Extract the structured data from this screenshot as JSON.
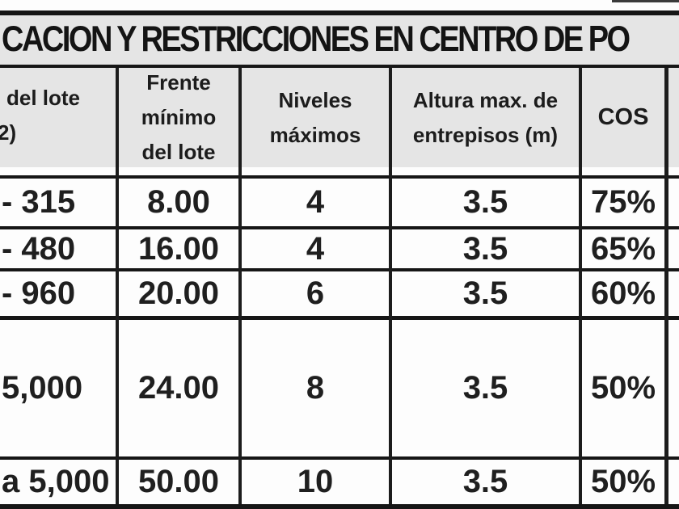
{
  "title": "CACION Y RESTRICCIONES EN CENTRO DE PO",
  "table": {
    "header": {
      "col1_lines": [
        "del lote",
        "2)"
      ],
      "col2_lines": [
        "Frente",
        "mínimo",
        "del lote"
      ],
      "col3_lines": [
        "Niveles",
        "máximos"
      ],
      "col4_lines": [
        "Altura max. de",
        "entrepisos (m)"
      ],
      "col5": "COS"
    },
    "rows": [
      [
        "- 315",
        "8.00",
        "4",
        "3.5",
        "75%"
      ],
      [
        "- 480",
        "16.00",
        "4",
        "3.5",
        "65%"
      ],
      [
        "- 960",
        "20.00",
        "6",
        "3.5",
        "60%"
      ],
      [
        "5,000",
        "24.00",
        "8",
        "3.5",
        "50%"
      ],
      [
        "a 5,000",
        "50.00",
        "10",
        "3.5",
        "50%"
      ]
    ]
  },
  "colors": {
    "band_gray": "#e5e5e5",
    "border_black": "#161616",
    "text": "#1f1f1f"
  }
}
